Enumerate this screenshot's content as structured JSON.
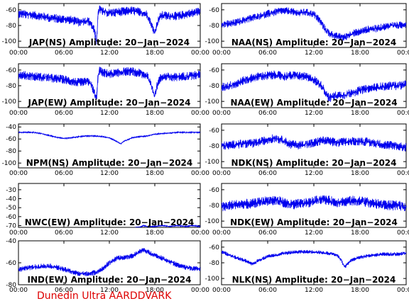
{
  "footer": "Dunedin Ultra AARDDVARK",
  "chart_data": [
    {
      "type": "line",
      "title": "JAP(NS) Amplitude: 20−Jan−2024",
      "xticks": [
        "00:00",
        "06:00",
        "12:00",
        "18:00",
        "00:00"
      ],
      "yticks": [
        -60,
        -80,
        -100
      ],
      "ylim": [
        -108,
        -52
      ],
      "noise": 7,
      "series": [
        {
          "x": [
            0,
            1,
            2,
            3,
            4,
            5,
            6,
            7,
            8,
            9,
            9.5,
            10,
            10.3,
            10.5,
            10.7,
            11,
            12,
            13,
            14,
            15,
            16,
            17,
            17.5,
            18,
            18.3,
            18.6,
            19,
            20,
            21,
            22,
            23,
            24
          ],
          "y": [
            -65,
            -66,
            -67,
            -68,
            -70,
            -71,
            -72,
            -73,
            -76,
            -74,
            -76,
            -86,
            -100,
            -68,
            -58,
            -62,
            -64,
            -63,
            -62,
            -61,
            -63,
            -66,
            -78,
            -90,
            -78,
            -70,
            -67,
            -68,
            -68,
            -66,
            -64,
            -62
          ]
        }
      ]
    },
    {
      "type": "line",
      "title": "NAA(NS) Amplitude: 20−Jan−2024",
      "xticks": [
        "00:00",
        "06:00",
        "12:00",
        "18:00",
        "00:00"
      ],
      "yticks": [
        -60,
        -80,
        -100
      ],
      "ylim": [
        -108,
        -52
      ],
      "noise": 6,
      "series": [
        {
          "x": [
            0,
            1,
            2,
            3,
            4,
            5,
            6,
            7,
            8,
            9,
            10,
            11,
            12,
            12.5,
            13,
            13.5,
            14,
            15,
            16,
            17,
            18,
            19,
            20,
            21,
            22,
            23,
            24
          ],
          "y": [
            -78,
            -78,
            -76,
            -73,
            -70,
            -68,
            -65,
            -63,
            -61,
            -62,
            -64,
            -63,
            -66,
            -70,
            -77,
            -85,
            -90,
            -94,
            -95,
            -90,
            -88,
            -85,
            -84,
            -82,
            -80,
            -80,
            -78
          ]
        }
      ]
    },
    {
      "type": "line",
      "title": "JAP(EW) Amplitude: 20−Jan−2024",
      "xticks": [
        "00:00",
        "06:00",
        "12:00",
        "18:00",
        "00:00"
      ],
      "yticks": [
        -60,
        -80,
        -100
      ],
      "ylim": [
        -108,
        -52
      ],
      "noise": 7,
      "series": [
        {
          "x": [
            0,
            1,
            2,
            3,
            4,
            5,
            6,
            7,
            8,
            9,
            9.5,
            10,
            10.3,
            10.5,
            10.7,
            11,
            12,
            13,
            14,
            15,
            16,
            17,
            17.5,
            18,
            18.3,
            18.6,
            19,
            20,
            21,
            22,
            23,
            24
          ],
          "y": [
            -66,
            -67,
            -68,
            -69,
            -70,
            -71,
            -72,
            -74,
            -76,
            -75,
            -77,
            -88,
            -98,
            -68,
            -60,
            -63,
            -65,
            -64,
            -62,
            -62,
            -64,
            -67,
            -80,
            -92,
            -80,
            -72,
            -68,
            -69,
            -69,
            -68,
            -67,
            -66
          ]
        }
      ]
    },
    {
      "type": "line",
      "title": "NAA(EW) Amplitude: 20−Jan−2024",
      "xticks": [
        "00:00",
        "06:00",
        "12:00",
        "18:00",
        "00:00"
      ],
      "yticks": [
        -60,
        -80,
        -100
      ],
      "ylim": [
        -108,
        -52
      ],
      "noise": 7,
      "series": [
        {
          "x": [
            0,
            1,
            2,
            3,
            4,
            5,
            6,
            7,
            8,
            9,
            10,
            11,
            12,
            13,
            13.5,
            14,
            14.5,
            15,
            16,
            17,
            18,
            19,
            20,
            21,
            22,
            23,
            24
          ],
          "y": [
            -82,
            -80,
            -77,
            -73,
            -70,
            -68,
            -67,
            -66,
            -68,
            -67,
            -67,
            -69,
            -72,
            -80,
            -88,
            -96,
            -94,
            -92,
            -92,
            -89,
            -86,
            -84,
            -82,
            -81,
            -80,
            -80,
            -78
          ]
        }
      ]
    },
    {
      "type": "line",
      "title": "NPM(NS) Amplitude: 20−Jan−2024",
      "xticks": [
        "00:00",
        "06:00",
        "12:00",
        "18:00",
        "00:00"
      ],
      "yticks": [
        -40,
        -60,
        -80,
        -100
      ],
      "ylim": [
        -108,
        -35
      ],
      "noise": 1,
      "series": [
        {
          "x": [
            0,
            1,
            2,
            3,
            4,
            5,
            6,
            7,
            8,
            9,
            10,
            11,
            12,
            13,
            13.5,
            14,
            14.5,
            15,
            16,
            17,
            18,
            19,
            20,
            21,
            22,
            23,
            24
          ],
          "y": [
            -49,
            -49,
            -49,
            -51,
            -54,
            -57,
            -59,
            -58,
            -56,
            -55,
            -55,
            -56,
            -58,
            -64,
            -68,
            -63,
            -61,
            -58,
            -56,
            -55,
            -52,
            -51,
            -50,
            -49,
            -49,
            -49,
            -49
          ]
        }
      ]
    },
    {
      "type": "line",
      "title": "NDK(NS) Amplitude: 20−Jan−2024",
      "xticks": [
        "00:00",
        "06:00",
        "12:00",
        "18:00",
        "00:00"
      ],
      "yticks": [
        -60,
        -80,
        -100
      ],
      "ylim": [
        -108,
        -52
      ],
      "noise": 7,
      "series": [
        {
          "x": [
            0,
            1,
            2,
            3,
            4,
            5,
            6,
            7,
            8,
            9,
            10,
            11,
            12,
            13,
            14,
            15,
            16,
            17,
            18,
            19,
            20,
            21,
            22,
            23,
            24
          ],
          "y": [
            -80,
            -79,
            -78,
            -77,
            -77,
            -75,
            -72,
            -70,
            -73,
            -78,
            -79,
            -78,
            -76,
            -73,
            -74,
            -76,
            -75,
            -74,
            -74,
            -75,
            -77,
            -78,
            -79,
            -80,
            -82
          ]
        }
      ]
    },
    {
      "type": "line",
      "title": "NWC(EW) Amplitude: 20−Jan−2024",
      "xticks": [
        "00:00",
        "06:00",
        "12:00",
        "18:00",
        "00:00"
      ],
      "yticks": [
        -30,
        -40,
        -50,
        -60,
        -70
      ],
      "ylim": [
        -72,
        -23
      ],
      "noise": 0.6,
      "series": [
        {
          "x": [
            0,
            14,
            15,
            16,
            16.5,
            17,
            18,
            19,
            20,
            21,
            22,
            23,
            24
          ],
          "y": [
            -74,
            -74,
            -73,
            -72,
            -70,
            -71,
            -71,
            -70,
            -71,
            -70,
            -71,
            -70,
            -71
          ]
        }
      ]
    },
    {
      "type": "line",
      "title": "NDK(EW) Amplitude: 20−Jan−2024",
      "xticks": [
        "00:00",
        "06:00",
        "12:00",
        "18:00",
        "00:00"
      ],
      "yticks": [
        -60,
        -80,
        -100
      ],
      "ylim": [
        -108,
        -52
      ],
      "noise": 8,
      "series": [
        {
          "x": [
            0,
            1,
            2,
            3,
            4,
            5,
            6,
            7,
            8,
            9,
            10,
            11,
            12,
            13,
            14,
            15,
            16,
            17,
            18,
            19,
            20,
            21,
            22,
            23,
            24
          ],
          "y": [
            -82,
            -80,
            -79,
            -78,
            -78,
            -76,
            -74,
            -73,
            -76,
            -79,
            -78,
            -77,
            -75,
            -72,
            -74,
            -76,
            -75,
            -74,
            -74,
            -76,
            -78,
            -79,
            -80,
            -80,
            -82
          ]
        }
      ]
    },
    {
      "type": "line",
      "title": "IND(EW) Amplitude: 20−Jan−2024",
      "xticks": [
        "00:00",
        "06:00",
        "12:00",
        "18:00",
        "00:00"
      ],
      "yticks": [
        -40,
        -60,
        -80
      ],
      "ylim": [
        -80,
        -40
      ],
      "noise": 3,
      "series": [
        {
          "x": [
            0,
            1,
            2,
            3,
            4,
            5,
            6,
            7,
            8,
            9,
            10,
            11,
            12,
            13,
            14,
            15,
            16,
            16.5,
            17,
            18,
            19,
            20,
            21,
            22,
            23,
            24
          ],
          "y": [
            -66,
            -65,
            -64,
            -63,
            -63,
            -64,
            -66,
            -68,
            -70,
            -70,
            -69,
            -66,
            -60,
            -56,
            -55,
            -54,
            -50,
            -48,
            -50,
            -53,
            -56,
            -59,
            -62,
            -64,
            -65,
            -66
          ]
        }
      ]
    },
    {
      "type": "line",
      "title": "NLK(NS) Amplitude: 20−Jan−2024",
      "xticks": [
        "00:00",
        "06:00",
        "12:00",
        "18:00",
        "00:00"
      ],
      "yticks": [
        -60,
        -80,
        -100
      ],
      "ylim": [
        -108,
        -52
      ],
      "noise": 3,
      "series": [
        {
          "x": [
            0,
            1,
            2,
            3,
            4,
            5,
            6,
            7,
            8,
            9,
            10,
            11,
            12,
            13,
            14,
            15,
            15.5,
            16,
            16.5,
            17,
            18,
            19,
            20,
            21,
            22,
            23,
            24
          ],
          "y": [
            -66,
            -70,
            -74,
            -77,
            -82,
            -76,
            -72,
            -70,
            -68,
            -67,
            -66,
            -66,
            -66,
            -67,
            -68,
            -70,
            -76,
            -86,
            -80,
            -76,
            -73,
            -71,
            -70,
            -69,
            -69,
            -69,
            -68
          ]
        }
      ]
    }
  ]
}
